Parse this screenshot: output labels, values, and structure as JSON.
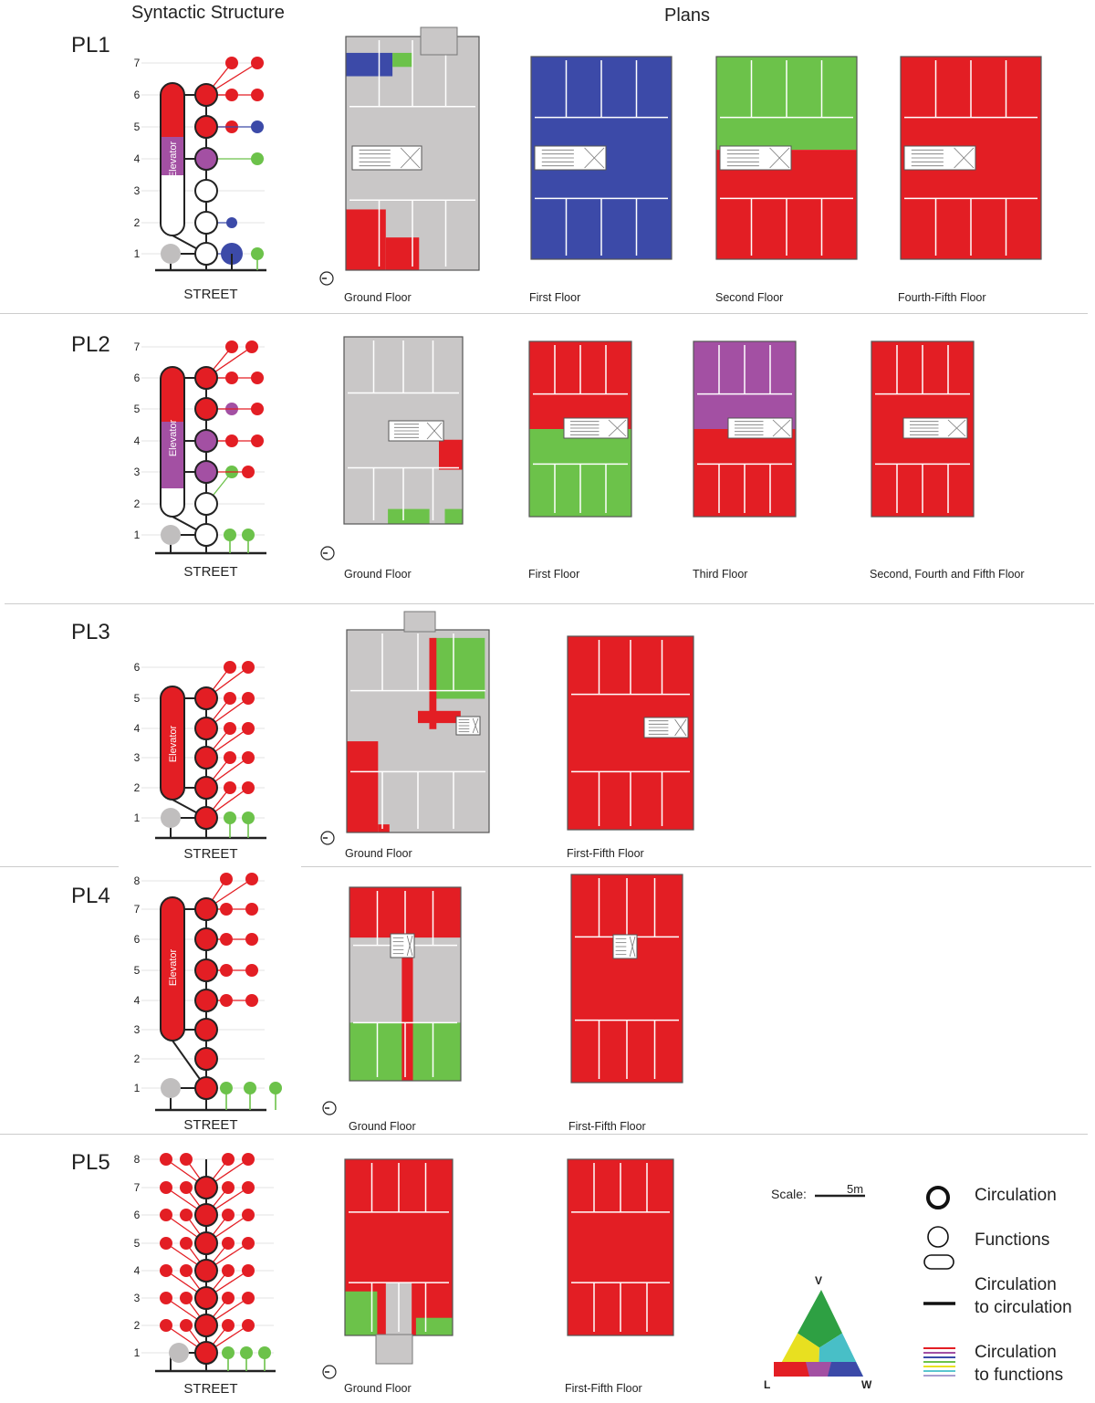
{
  "headers": {
    "syntactic": "Syntactic Structure",
    "plans": "Plans"
  },
  "street_label": "STREET",
  "elevator_label": "Elevator",
  "colors": {
    "red": "#e31e24",
    "purple": "#a350a3",
    "green": "#6cc24a",
    "blue": "#3c4aa8",
    "gray": "#c0bebe",
    "plan_gray": "#c9c7c7"
  },
  "rows": [
    {
      "id": "PL1",
      "floor_numbers": [
        "7",
        "6",
        "5",
        "4",
        "3",
        "2",
        "1"
      ],
      "captions": [
        "Ground Floor",
        "First Floor",
        "Second Floor",
        "Fourth-Fifth Floor"
      ]
    },
    {
      "id": "PL2",
      "floor_numbers": [
        "7",
        "6",
        "5",
        "4",
        "3",
        "2",
        "1"
      ],
      "captions": [
        "Ground Floor",
        "First Floor",
        "Third Floor",
        "Second, Fourth and Fifth Floor"
      ]
    },
    {
      "id": "PL3",
      "floor_numbers": [
        "6",
        "5",
        "4",
        "3",
        "2",
        "1"
      ],
      "captions": [
        "Ground Floor",
        "First-Fifth Floor"
      ]
    },
    {
      "id": "PL4",
      "floor_numbers": [
        "8",
        "7",
        "6",
        "5",
        "4",
        "3",
        "2",
        "1"
      ],
      "captions": [
        "Ground Floor",
        "First-Fifth Floor"
      ]
    },
    {
      "id": "PL5",
      "floor_numbers": [
        "8",
        "7",
        "6",
        "5",
        "4",
        "3",
        "2",
        "1"
      ],
      "captions": [
        "Ground Floor",
        "First-Fifth Floor"
      ]
    }
  ],
  "scale": {
    "label": "Scale:",
    "value": "5m"
  },
  "legend": {
    "circulation": "Circulation",
    "functions": "Functions",
    "circ_to_circ_1": "Circulation",
    "circ_to_circ_2": "to circulation",
    "circ_to_func_1": "Circulation",
    "circ_to_func_2": "to functions"
  },
  "triangle": {
    "top": "V",
    "left": "L",
    "right": "W"
  }
}
